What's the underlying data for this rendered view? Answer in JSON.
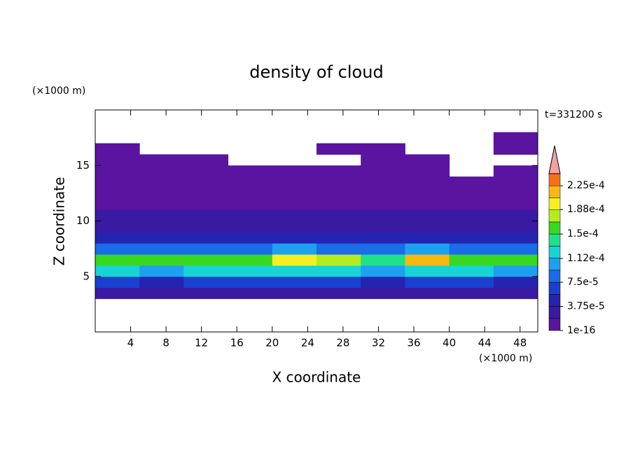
{
  "chart_data": {
    "type": "contour",
    "title": "density of cloud",
    "x_label": "X coordinate",
    "y_label": "Z coordinate",
    "x_unit": "(×1000 m)",
    "y_unit": "(×1000 m)",
    "time_label": "t=331200 s",
    "xlim": [
      0,
      50
    ],
    "ylim": [
      0,
      20
    ],
    "xticks": [
      4,
      8,
      12,
      16,
      20,
      24,
      28,
      32,
      36,
      40,
      44,
      48
    ],
    "yticks": [
      5,
      10,
      15
    ],
    "x": [
      2.5,
      7.5,
      12.5,
      17.5,
      22.5,
      27.5,
      32.5,
      37.5,
      42.5,
      47.5
    ],
    "y": [
      0.5,
      1.5,
      2.5,
      3.5,
      4.5,
      5.5,
      6.5,
      7.5,
      8.5,
      9.5,
      10.5,
      11.5,
      12.5,
      13.5,
      14.5,
      15.5,
      16.5,
      17.5,
      18.5,
      19.5
    ],
    "z": [
      [
        null,
        null,
        null,
        null,
        null,
        null,
        null,
        null,
        null,
        null
      ],
      [
        null,
        null,
        null,
        null,
        null,
        null,
        null,
        null,
        null,
        null
      ],
      [
        null,
        null,
        null,
        null,
        null,
        null,
        null,
        null,
        null,
        null
      ],
      [
        2.5e-05,
        2.5e-05,
        2.5e-05,
        2.5e-05,
        2.5e-05,
        2.5e-05,
        2.5e-05,
        2.5e-05,
        2.5e-05,
        2.5e-05
      ],
      [
        6e-05,
        5.5e-05,
        6e-05,
        6e-05,
        6.5e-05,
        6e-05,
        5.5e-05,
        6.5e-05,
        6e-05,
        5.5e-05
      ],
      [
        0.00012,
        0.00011,
        0.000115,
        0.00012,
        0.00013,
        0.000125,
        0.00011,
        0.00013,
        0.00012,
        0.00011
      ],
      [
        0.00016,
        0.000155,
        0.00015,
        0.00016,
        0.0002,
        0.00017,
        0.000145,
        0.00021,
        0.00016,
        0.00015
      ],
      [
        9e-05,
        8e-05,
        8.5e-05,
        9e-05,
        0.00011,
        9e-05,
        8e-05,
        0.00011,
        9e-05,
        8e-05
      ],
      [
        4.5e-05,
        4.5e-05,
        4.5e-05,
        4.5e-05,
        5e-05,
        4.5e-05,
        4.5e-05,
        5e-05,
        4.5e-05,
        5.5e-05
      ],
      [
        3e-05,
        3e-05,
        3e-05,
        3e-05,
        3e-05,
        3e-05,
        3e-05,
        3e-05,
        3e-05,
        3.5e-05
      ],
      [
        2e-05,
        2e-05,
        2e-05,
        2e-05,
        2e-05,
        2e-05,
        2e-05,
        2e-05,
        2e-05,
        2e-05
      ],
      [
        1e-05,
        1e-05,
        1e-05,
        1e-05,
        1e-05,
        1e-05,
        1e-05,
        1e-05,
        1e-05,
        1e-05
      ],
      [
        4e-06,
        4e-06,
        4e-06,
        4e-06,
        4e-06,
        4e-06,
        4e-06,
        4e-06,
        4e-06,
        4e-06
      ],
      [
        2e-06,
        2e-06,
        2e-06,
        2e-06,
        2e-06,
        2e-06,
        2e-06,
        2e-06,
        2e-06,
        2e-06
      ],
      [
        1e-06,
        1e-06,
        1e-06,
        1e-06,
        1e-06,
        1e-06,
        1e-06,
        1e-06,
        null,
        1e-06
      ],
      [
        1e-06,
        1e-06,
        1e-06,
        null,
        null,
        null,
        1e-06,
        1e-06,
        null,
        null
      ],
      [
        1e-06,
        null,
        null,
        null,
        null,
        1e-06,
        1e-06,
        null,
        null,
        1e-06
      ],
      [
        null,
        null,
        null,
        null,
        null,
        null,
        null,
        null,
        null,
        1e-06
      ],
      [
        null,
        null,
        null,
        null,
        null,
        null,
        null,
        null,
        null,
        null
      ],
      [
        null,
        null,
        null,
        null,
        null,
        null,
        null,
        null,
        null,
        null
      ]
    ],
    "levels": [
      1e-16,
      1.875e-05,
      3.75e-05,
      5.625e-05,
      7.5e-05,
      9.375e-05,
      0.0001125,
      0.00013125,
      0.00015,
      0.00016875,
      0.0001875,
      0.00020625,
      0.000225,
      0.00024375
    ],
    "colors": [
      "#5a14a0",
      "#3a1aa2",
      "#2424b0",
      "#1a40d0",
      "#1a6ce8",
      "#1ea0f0",
      "#18d4d4",
      "#20e08a",
      "#38d820",
      "#b4ec20",
      "#f4f020",
      "#f8b810",
      "#f87018",
      "#f02820"
    ],
    "extend_color": "#f4a0a0",
    "colorbar_ticks": [
      {
        "value": 1e-16,
        "label": "1e-16"
      },
      {
        "value": 3.75e-05,
        "label": "3.75e-5"
      },
      {
        "value": 7.5e-05,
        "label": "7.5e-5"
      },
      {
        "value": 0.000112,
        "label": "1.12e-4"
      },
      {
        "value": 0.00015,
        "label": "1.5e-4"
      },
      {
        "value": 0.000188,
        "label": "1.88e-4"
      },
      {
        "value": 0.000225,
        "label": "2.25e-4"
      }
    ]
  }
}
